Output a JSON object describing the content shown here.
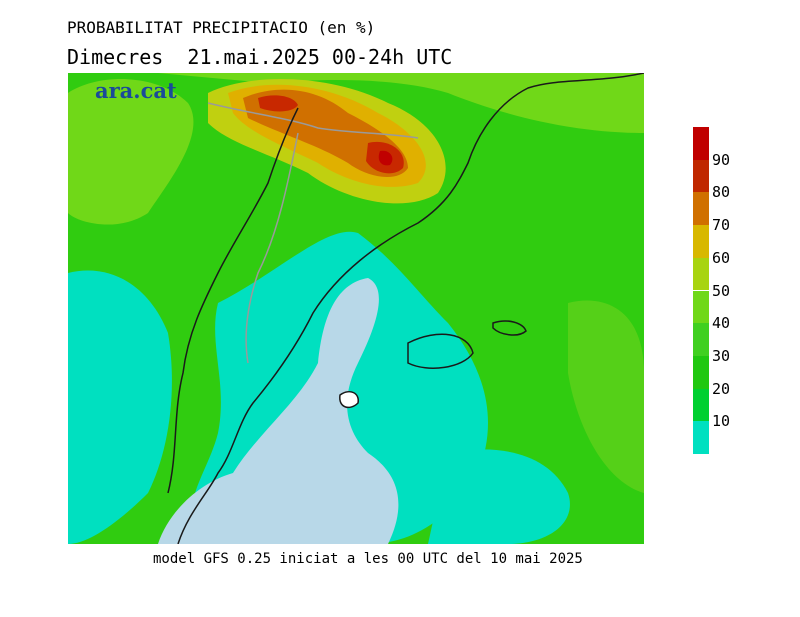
{
  "header": {
    "title": "PROBABILITAT PRECIPITACIO (en %)",
    "subtitle": "Dimecres  21.mai.2025 00-24h UTC"
  },
  "logo": {
    "text": "ara.cat"
  },
  "footer": {
    "text": "model GFS 0.25 iniciat a les 00 UTC del 10 mai 2025"
  },
  "legend": {
    "labels": [
      "10",
      "20",
      "30",
      "40",
      "50",
      "60",
      "70",
      "80",
      "90"
    ],
    "colors": [
      "#00e0c0",
      "#00d030",
      "#20c810",
      "#40d020",
      "#70d818",
      "#a8d410",
      "#d8b800",
      "#d07000",
      "#c02800",
      "#c00000"
    ]
  },
  "map_colors": {
    "sea_low": "#b8d8e8",
    "p10": "#00e0c0",
    "p20": "#00d820",
    "p30": "#30cc10",
    "p40": "#55d018",
    "p50": "#90d020",
    "p60": "#c0d010",
    "p70": "#e0b000",
    "p80": "#d07000",
    "p90": "#c82800",
    "p95": "#c00000",
    "coast": "#1a1a1a",
    "border": "#9a9a9a"
  }
}
